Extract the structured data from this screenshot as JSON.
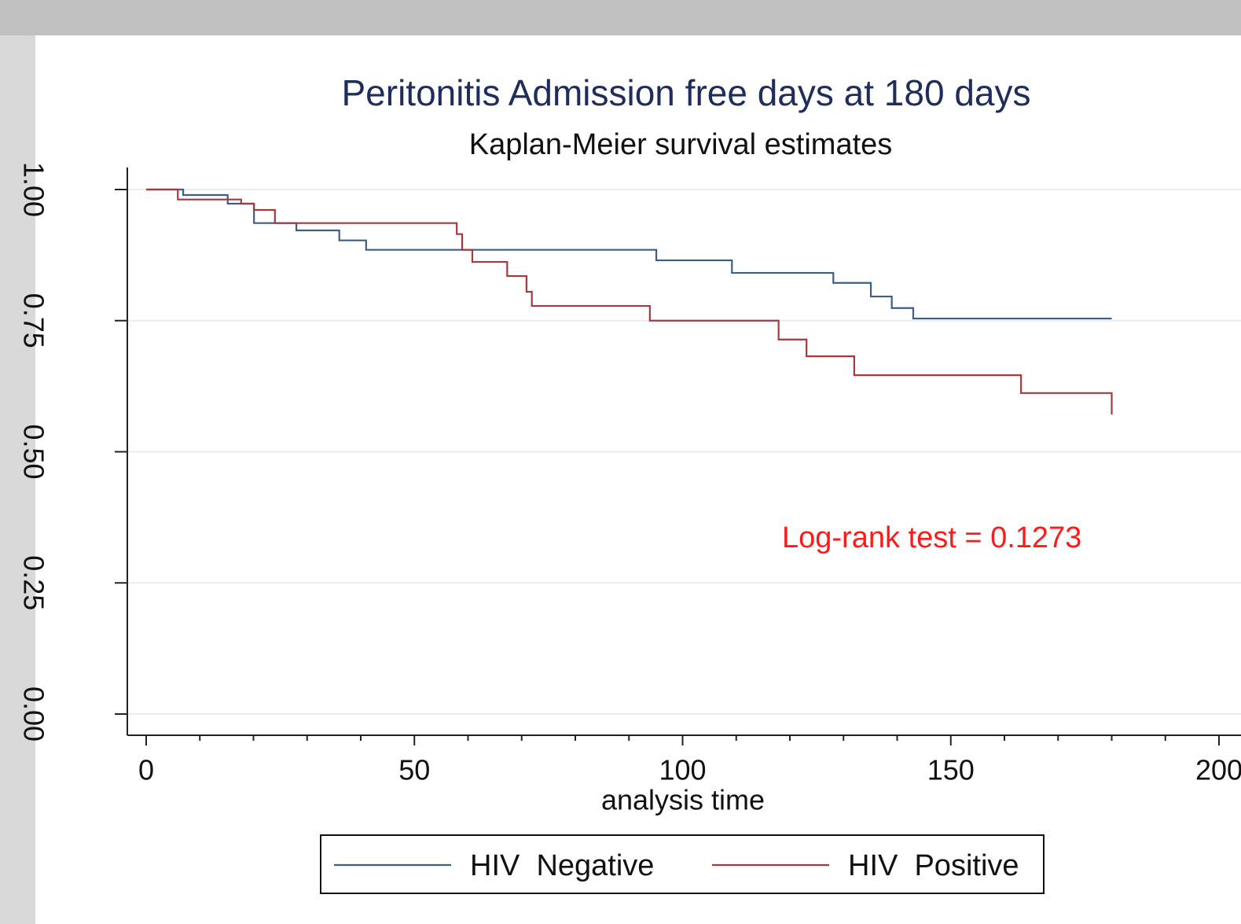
{
  "chart_data": {
    "type": "step",
    "title": "Peritonitis Admission free days at 180 days",
    "subtitle": "Kaplan-Meier survival estimates",
    "xlabel": "analysis time",
    "annotation": "Log-rank test = 0.1273",
    "annotation_color": "#ff1a1a",
    "series": [
      {
        "name": "HIV  Negative",
        "color": "#3b5f86",
        "x": [
          0,
          6.9,
          15.2,
          20.1,
          28.0,
          36.0,
          41.0,
          95.1,
          109.2,
          128.1,
          135.1,
          139.0,
          143.0,
          180
        ],
        "values": [
          1.0,
          0.9895,
          0.973,
          0.936,
          0.922,
          0.903,
          0.885,
          0.865,
          0.841,
          0.822,
          0.796,
          0.774,
          0.754,
          0.754
        ]
      },
      {
        "name": "HIV  Positive",
        "color": "#a33a3f",
        "x": [
          0,
          5.9,
          17.7,
          20.1,
          24.0,
          57.9,
          58.9,
          60.8,
          67.3,
          70.9,
          71.9,
          93.9,
          117.9,
          123.1,
          132.0,
          163.1,
          180
        ],
        "values": [
          1.0,
          0.981,
          0.973,
          0.961,
          0.936,
          0.915,
          0.885,
          0.862,
          0.835,
          0.805,
          0.778,
          0.75,
          0.714,
          0.682,
          0.646,
          0.612,
          0.571
        ]
      }
    ],
    "xlim": [
      0,
      200
    ],
    "xticks": [
      0,
      50,
      100,
      150,
      200
    ],
    "xticks_minor": [
      10,
      20,
      30,
      40,
      60,
      70,
      80,
      90,
      110,
      120,
      130,
      140,
      160,
      170,
      180,
      190
    ],
    "ylim": [
      0,
      1
    ],
    "yticks": [
      {
        "value": 0,
        "label": "0.00"
      },
      {
        "value": 0.25,
        "label": "0.25"
      },
      {
        "value": 0.5,
        "label": "0.50"
      },
      {
        "value": 0.75,
        "label": "0.75"
      },
      {
        "value": 1,
        "label": "1.00"
      }
    ],
    "grid": true
  }
}
